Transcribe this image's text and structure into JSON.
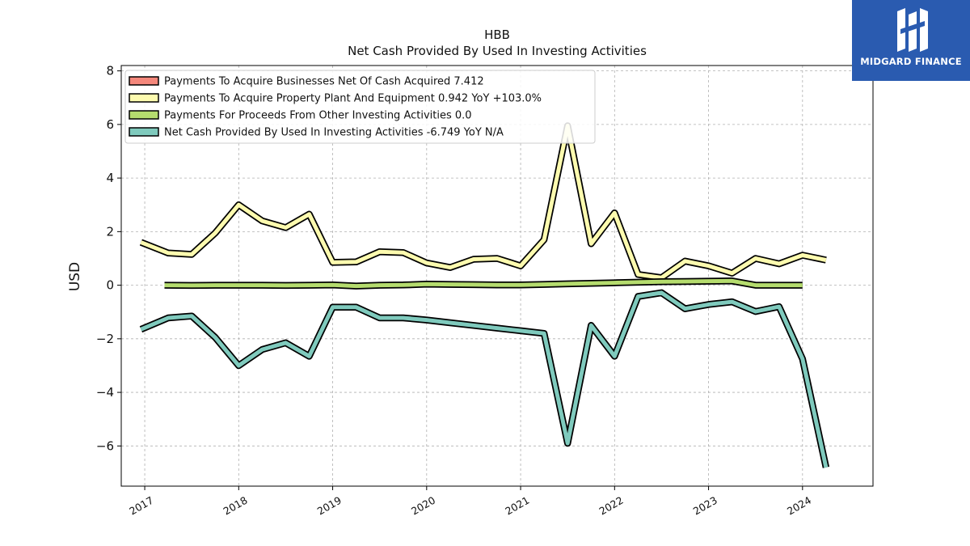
{
  "brand": {
    "name": "MIDGARD FINANCE",
    "color": "#2a5bb0"
  },
  "chart_data": {
    "type": "line",
    "title": "HBB",
    "subtitle": "Net Cash Provided By Used In Investing Activities",
    "xlabel": "",
    "ylabel": "USD",
    "xlim": [
      2016.75,
      2024.75
    ],
    "ylim": [
      -7.5,
      8.2
    ],
    "x_ticks": [
      2017,
      2018,
      2019,
      2020,
      2021,
      2022,
      2023,
      2024
    ],
    "x_tick_labels": [
      "2017",
      "2018",
      "2019",
      "2020",
      "2021",
      "2022",
      "2023",
      "2024"
    ],
    "y_ticks": [
      -6,
      -4,
      -2,
      0,
      2,
      4,
      6,
      8
    ],
    "y_tick_labels": [
      "−6",
      "−4",
      "−2",
      "0",
      "2",
      "4",
      "6",
      "8"
    ],
    "grid": true,
    "legend_position": "top-left",
    "series": [
      {
        "name": "Payments To Acquire Businesses Net Of Cash Acquired",
        "legend": "Payments To Acquire Businesses Net Of Cash Acquired  7.412",
        "color": "#f4877b",
        "x": [],
        "values": []
      },
      {
        "name": "Payments To Acquire Property Plant And Equipment",
        "legend": "Payments To Acquire Property Plant And Equipment  0.942 YoY +103.0%",
        "color": "#fdfbaf",
        "x": [
          2016.96,
          2017.25,
          2017.5,
          2017.75,
          2018.0,
          2018.25,
          2018.5,
          2018.75,
          2019.0,
          2019.25,
          2019.5,
          2019.75,
          2020.0,
          2020.25,
          2020.5,
          2020.75,
          2021.0,
          2021.25,
          2021.5,
          2021.75,
          2022.0,
          2022.25,
          2022.5,
          2022.75,
          2023.0,
          2023.25,
          2023.5,
          2023.75,
          2024.0,
          2024.25
        ],
        "values": [
          1.6,
          1.2,
          1.15,
          1.95,
          3.0,
          2.4,
          2.15,
          2.65,
          0.85,
          0.87,
          1.25,
          1.22,
          0.83,
          0.66,
          0.97,
          1.0,
          0.72,
          1.7,
          5.95,
          1.55,
          2.7,
          0.4,
          0.28,
          0.9,
          0.72,
          0.45,
          1.0,
          0.8,
          1.12,
          0.94
        ]
      },
      {
        "name": "Payments For Proceeds From Other Investing Activities",
        "legend": "Payments For Proceeds From Other Investing Activities  0.0",
        "color": "#b5dc6e",
        "x": [
          2017.21,
          2017.5,
          2017.75,
          2018.0,
          2018.25,
          2018.5,
          2018.75,
          2019.0,
          2019.25,
          2019.5,
          2019.75,
          2020.0,
          2020.25,
          2020.5,
          2020.75,
          2021.0,
          2021.25,
          2021.5,
          2021.75,
          2022.0,
          2022.25,
          2022.5,
          2022.75,
          2023.0,
          2023.25,
          2023.5,
          2023.75,
          2024.0
        ],
        "values": [
          0.0,
          -0.01,
          0.0,
          0.0,
          0.0,
          -0.01,
          0.0,
          0.01,
          -0.03,
          0.0,
          0.01,
          0.04,
          0.03,
          0.02,
          0.01,
          0.01,
          0.03,
          0.05,
          0.07,
          0.09,
          0.11,
          0.13,
          0.14,
          0.15,
          0.16,
          0.0,
          0.0,
          0.0
        ]
      },
      {
        "name": "Net Cash Provided By Used In Investing Activities",
        "legend": "Net Cash Provided By Used In Investing Activities  -6.749 YoY N/A",
        "color": "#7fcabd",
        "x": [
          2016.96,
          2017.25,
          2017.5,
          2017.75,
          2018.0,
          2018.25,
          2018.5,
          2018.75,
          2019.0,
          2019.25,
          2019.5,
          2019.75,
          2020.0,
          2020.25,
          2020.5,
          2020.75,
          2021.0,
          2021.25,
          2021.5,
          2021.75,
          2022.0,
          2022.25,
          2022.5,
          2022.75,
          2023.0,
          2023.25,
          2023.5,
          2023.75,
          2024.0,
          2024.25
        ],
        "values": [
          -1.65,
          -1.22,
          -1.15,
          -1.95,
          -3.0,
          -2.4,
          -2.15,
          -2.65,
          -0.82,
          -0.82,
          -1.22,
          -1.22,
          -1.3,
          -1.4,
          -1.5,
          -1.6,
          -1.7,
          -1.8,
          -5.9,
          -1.5,
          -2.65,
          -0.42,
          -0.28,
          -0.88,
          -0.72,
          -0.62,
          -0.98,
          -0.8,
          -2.75,
          -6.8
        ]
      }
    ]
  }
}
